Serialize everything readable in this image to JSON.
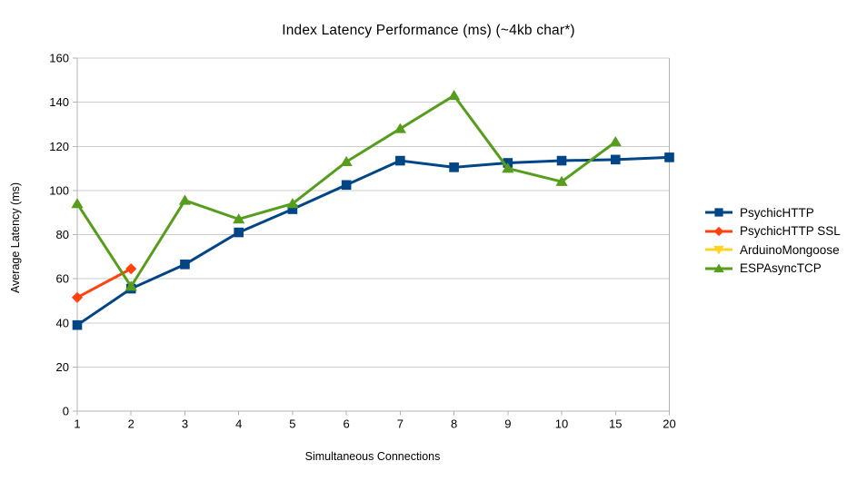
{
  "chart_data": {
    "type": "line",
    "title": "Index Latency Performance (ms) (~4kb char*)",
    "xlabel": "Simultaneous Connections",
    "ylabel": "Average Latency (ms)",
    "categories": [
      "1",
      "2",
      "3",
      "4",
      "5",
      "6",
      "7",
      "8",
      "9",
      "10",
      "15",
      "20"
    ],
    "ylim": [
      0,
      160
    ],
    "yticks": [
      0,
      20,
      40,
      60,
      80,
      100,
      120,
      140,
      160
    ],
    "grid": "horizontal",
    "legend_position": "right",
    "series": [
      {
        "name": "PsychicHTTP",
        "color": "#004586",
        "marker": "square",
        "values": [
          39,
          55.5,
          66.5,
          81,
          91.5,
          102.5,
          113.5,
          110.5,
          112.5,
          113.5,
          114,
          115
        ]
      },
      {
        "name": "PsychicHTTP SSL",
        "color": "#ff420e",
        "marker": "diamond",
        "values": [
          51.5,
          64.5,
          null,
          null,
          null,
          null,
          null,
          null,
          null,
          null,
          null,
          null
        ]
      },
      {
        "name": "ArduinoMongoose",
        "color": "#ffd320",
        "marker": "triangle-down",
        "values": [
          null,
          null,
          null,
          null,
          null,
          null,
          null,
          null,
          null,
          null,
          null,
          null
        ]
      },
      {
        "name": "ESPAsyncTCP",
        "color": "#579d1c",
        "marker": "triangle-up",
        "values": [
          94,
          56.5,
          95.5,
          87,
          94,
          113,
          128,
          143,
          110,
          104,
          122,
          null
        ]
      }
    ],
    "colors": {
      "background": "#ffffff",
      "grid": "#cccccc",
      "axis": "#b3b3b3",
      "text": "#000000"
    }
  }
}
